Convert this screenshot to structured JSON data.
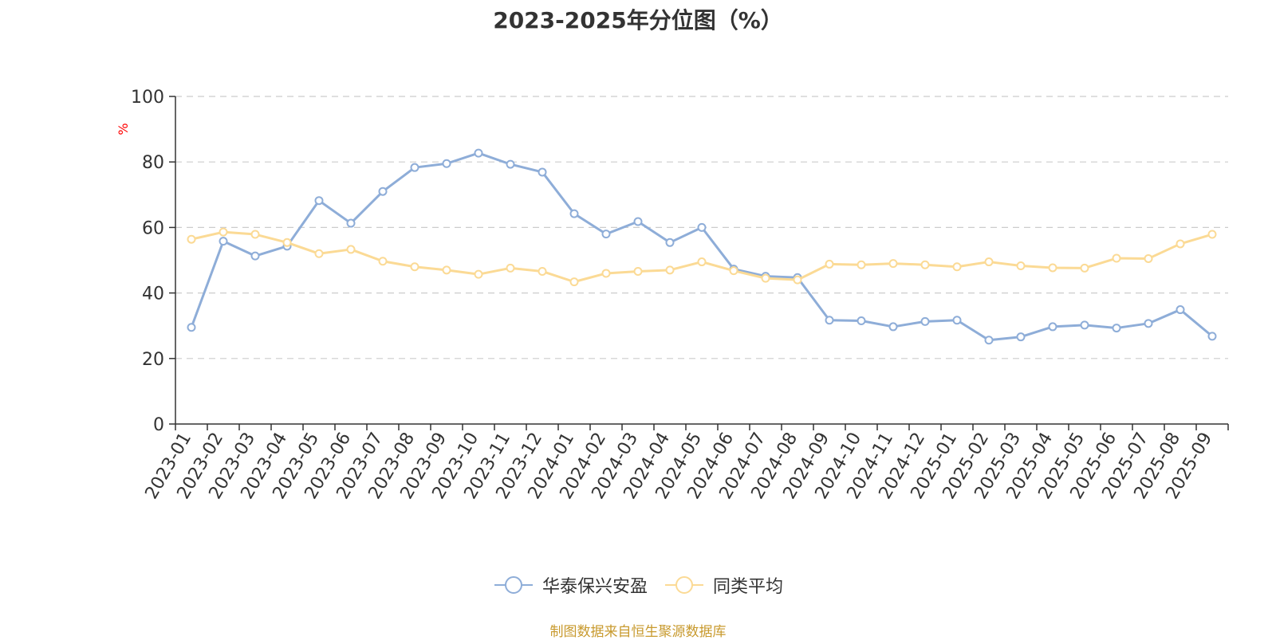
{
  "title": "2023-2025年分位图（%）",
  "source_text": "制图数据来自恒生聚源数据库",
  "colors": {
    "series_1": "#8EADD8",
    "series_2": "#FBDA95",
    "ylabel": "#ff0000",
    "source": "#C89A2E",
    "axis": "#333333",
    "grid": "#cccccc"
  },
  "chart_data": {
    "type": "line",
    "title": "2023-2025年分位图（%）",
    "xlabel": "",
    "ylabel": "%",
    "ylim": [
      0,
      100
    ],
    "yticks": [
      0,
      20,
      40,
      60,
      80,
      100
    ],
    "grid": "horizontal dashed",
    "legend_position": "bottom-center",
    "categories": [
      "2023-01",
      "2023-02",
      "2023-03",
      "2023-04",
      "2023-05",
      "2023-06",
      "2023-07",
      "2023-08",
      "2023-09",
      "2023-10",
      "2023-11",
      "2023-12",
      "2024-01",
      "2024-02",
      "2024-03",
      "2024-04",
      "2024-05",
      "2024-06",
      "2024-07",
      "2024-08",
      "2024-09",
      "2024-10",
      "2024-11",
      "2024-12",
      "2025-01",
      "2025-02",
      "2025-03",
      "2025-04",
      "2025-05",
      "2025-06",
      "2025-07",
      "2025-08",
      "2025-09"
    ],
    "series": [
      {
        "name": "华泰保兴安盈",
        "values": [
          29.5,
          55.8,
          51.3,
          54.3,
          68.2,
          61.3,
          71.0,
          78.3,
          79.5,
          82.7,
          79.3,
          76.9,
          64.2,
          58.0,
          61.8,
          55.4,
          60.0,
          47.3,
          45.1,
          44.7,
          31.7,
          31.5,
          29.7,
          31.3,
          31.7,
          25.6,
          26.6,
          29.7,
          30.2,
          29.3,
          30.7,
          34.9,
          26.8
        ]
      },
      {
        "name": "同类平均",
        "values": [
          56.4,
          58.6,
          57.9,
          55.4,
          52.0,
          53.3,
          49.7,
          48.0,
          47.0,
          45.7,
          47.6,
          46.6,
          43.4,
          46.0,
          46.6,
          47.0,
          49.5,
          46.8,
          44.5,
          44.0,
          48.8,
          48.6,
          49.0,
          48.6,
          48.0,
          49.5,
          48.3,
          47.7,
          47.6,
          50.6,
          50.5,
          55.0,
          57.9
        ]
      }
    ]
  }
}
